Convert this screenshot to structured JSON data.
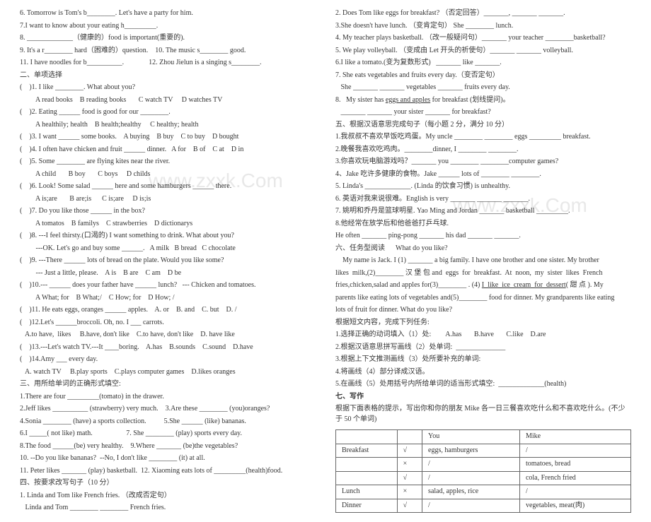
{
  "left": {
    "vocab": [
      "6. Tomorrow is Tom's b________. Let's have a party for him.",
      "7.I want to know about your eating h_________.",
      "8. _____________（健康的）food is important(重要的).",
      "9. It's a r________ hard（困难的）question.    10. The music s________ good.",
      "11. I have noodles for b__________.              12. Zhou Jielun is a singing s________."
    ],
    "section2_title": "二、单项选择",
    "mc": [
      "(    )1. I like ________. What about you?",
      "         A read books    B reading books       C watch TV     D watches TV",
      "(    )2. Eating ______ food is good for our ________.",
      "         A healthily; health    B health;healthy     C healthy; health",
      "(    )3. I want ______ some books.    A buying    B buy    C to buy    D bought",
      "(    )4. I often have chicken and fruit ______ dinner.   A for    B of    C at    D in",
      "(    )5. Some ________ are flying kites near the river.",
      "         A child       B boy       C boys     D childs",
      "(    )6. Look! Some salad ______ here and some hamburgers ______ there.",
      "         A is;are       B are;is      C is;are     D is;is",
      "(    )7. Do you like those ______ in the box?",
      "         A tomatos    B familys    C strawberries    D dictionarys",
      "(    )8. ---I feel thirsty.(口渴的) I want something to drink. What about you?",
      "         ---OK. Let's go and buy some ______.   A milk   B bread   C chocolate",
      "(    )9. ---There ______ lots of bread on the plate. Would you like some?",
      "         --- Just a little, please.    A is    B are    C am    D be",
      "(    )10.--- ______ does your father have ______ lunch?   --- Chicken and tomatoes.",
      "         A What; for    B What;/    C How; for    D How; /",
      "(    )11. He eats eggs, oranges ______ apples.    A. or    B. and    C. but    D. /",
      "(    )12.Let's ______broccoli. Oh, no. I ___ carrots.",
      "   A.to have,  likes     B.have, don't like    C.to have, don't like    D. have like",
      "(    )13.---Let's watch TV.---It ____boring.    A.has    B.sounds    C.sound    D.have",
      "(    )14.Amy ___ every day.",
      "   A. watch TV     B.play sports    C.plays computer games    D.likes oranges"
    ],
    "section3_title": "三、用所给单词的正确形式填空:",
    "fill": [
      "1.There are four _________(tomato) in the drawer.",
      "2.Jeff likes __________ (strawberry) very much.    3.Are these ________ (you)oranges?",
      "4.Sonia ________ (have) a sports collection.          5.She ______ (like) bananas.",
      "6.I _____( not like) math.                   7. She ________ (play) sports every day.",
      "8.The food ______(be) very healthy.    9.Where _______ (be)the vegetables?",
      "10. --Do you like bananas?  --No, I don't like ________ (it) at all.",
      "11. Peter likes _______ (play) basketball.  12. Xiaoming eats lots of _________(health)food."
    ],
    "section4_title": "四、按要求改写句子（10 分）",
    "rewrite": [
      "1. Linda and Tom like French fries. （改成否定句）",
      "   Linda and Tom ________ ________ French fries."
    ]
  },
  "right": {
    "rewrite": [
      "2. Does Tom like eggs for breakfast? （否定回答）_______, _______ _______.",
      "3.She doesn't have lunch. （变肯定句） She ________ lunch.",
      "4. My teacher plays basketball. （改一般疑问句）_______ your teacher ________basketball?",
      "5. We play volleyball. （变成由 Let 开头的祈使句）_______ _______ volleyball.",
      "6.I like a tomato.(变为复数形式)   _______ like _______.",
      "7. She eats vegetables and fruits every day.（变否定句）",
      "   She _______ _______ vegetables _______ fruits every day.",
      "8.   My sister has eggs and apples for breakfast (划线提问)。",
      "   _______ _______ your sister _______ for breakfast?"
    ],
    "section5_title": "五、根据汉语意思完成句子（每小题 2 分，满分 10 分）",
    "cn": [
      "1.我叔叔不喜欢早饭吃鸡蛋。My uncle ________ ________ eggs _________ breakfast.",
      "2.晚餐我喜欢吃鸡肉。________dinner, I ________ ________.",
      "3.你喜欢玩电脑游戏吗？_______ you ________ ________computer games?",
      "4、Jake 吃许多健康的食物。Jake ______ lots of ________ ________.",
      "5. Linda's _____________. (Linda 的饮食习惯) is unhealthy.",
      "6. 英语对我来说很难。English is very _______ _______ _______.",
      "7. 姚明和乔丹是篮球明星. Yao Ming and Jordan _______ basketball _________.",
      "8.他经常在放学后和他爸爸打乒乓球.",
      "He often _______ ping-pong _______ his dad _______ _______."
    ],
    "section6_title": "六、任务型阅读      What do you like?",
    "passage": [
      "    My name is Jack. I (1) _______ a big family. I have one brother and one sister. My brother",
      "likes  milk,(2)________ 汉 堡 包 and  eggs  for  breakfast.  At  noon,  my  sister  likes  French",
      "fries,chicken,salad and apples for(3)________ . (4) I  like  ice  cream  for  dessert( 甜 点 ). My",
      "parents like eating lots of vegetables and(5)________ food for dinner. My grandparents like eating",
      "lots of fruit for dinner. What do you like?"
    ],
    "tasks_title": "根据短文内容，完成下列任务:",
    "tasks": [
      "1.选择正确的动词填入（1）处:        A.has       B.have       C.like    D.are",
      "2.根据汉语意思拼写画线（2）处单词:  ______________",
      "3.根据上下文推测画线（3）处所要补充的单词:",
      "4.将画线（4）部分译成汉语。",
      "5.在画线（5）处用括号内所给单词的适当形式填空:  _____________(health)"
    ],
    "section7_title": "七、写作",
    "writing_intro": "根据下面表格的提示，写出你和你的朋友 Mike 各一日三餐喜欢吃什么和不喜欢吃什么。(不少于 50 个单词)",
    "table": {
      "headers": [
        "",
        "",
        "You",
        "Mike"
      ],
      "rows": [
        [
          "Breakfast",
          "√",
          "eggs, hamburgers",
          "/"
        ],
        [
          "",
          "×",
          "/",
          "tomatoes, bread"
        ],
        [
          "",
          "√",
          "/",
          "cola, French fried"
        ],
        [
          "Lunch",
          "×",
          "salad, apples, rice",
          "/"
        ],
        [
          "Dinner",
          "√",
          "/",
          "vegetables, meat(肉)"
        ]
      ]
    }
  },
  "watermark": "www.zxxk.Com"
}
